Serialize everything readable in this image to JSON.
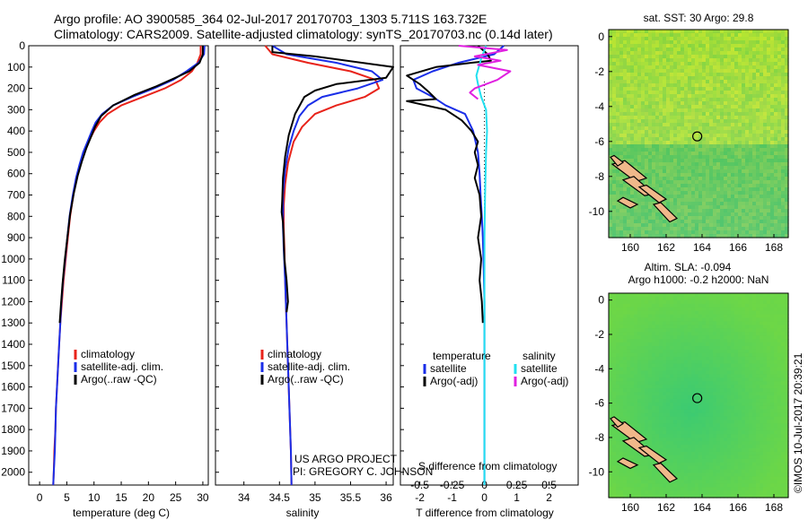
{
  "header": {
    "line1": "Argo profile: AO 3900585_364 02-Jul-2017 20170703_1303 5.711S 163.732E",
    "line2": "Climatology: CARS2009. Satellite-adjusted climatology: synTS_20170703.nc (0.14d later)"
  },
  "credits": {
    "project": "US ARGO PROJECT",
    "pi": "PI: GREGORY C. JOHNSON",
    "stamp": "©IMOS 10-Jul-2017 20:39:21"
  },
  "colors": {
    "climatology": "#e8231a",
    "satellite": "#1a2ee8",
    "argo": "#000000",
    "sat_salinity": "#22e0f0",
    "argo_salinity": "#e020e0",
    "land": "#f0b88a"
  },
  "chart_data": [
    {
      "type": "line",
      "name": "temperature",
      "xlabel": "temperature (deg C)",
      "xlim": [
        -2,
        31
      ],
      "ylim": [
        2060,
        0
      ],
      "xticks": [
        "0",
        "5",
        "10",
        "15",
        "20",
        "25",
        "30"
      ],
      "yticks": [
        "0",
        "100",
        "200",
        "300",
        "400",
        "500",
        "600",
        "700",
        "800",
        "900",
        "1000",
        "1100",
        "1200",
        "1300",
        "1400",
        "1500",
        "1600",
        "1700",
        "1800",
        "1900",
        "2000"
      ],
      "legend": [
        "climatology",
        "satellite-adj. clim.",
        "Argo(..raw -QC)"
      ],
      "series": [
        {
          "name": "climatology",
          "color_key": "climatology",
          "points": [
            [
              29.6,
              0
            ],
            [
              29.6,
              40
            ],
            [
              29.0,
              80
            ],
            [
              28.0,
              120
            ],
            [
              26.0,
              160
            ],
            [
              23.0,
              200
            ],
            [
              19.0,
              240
            ],
            [
              15.0,
              280
            ],
            [
              12.5,
              320
            ],
            [
              11.0,
              360
            ],
            [
              10.0,
              400
            ],
            [
              9.0,
              450
            ],
            [
              8.2,
              500
            ],
            [
              7.4,
              560
            ],
            [
              6.8,
              620
            ],
            [
              6.2,
              700
            ],
            [
              5.6,
              800
            ],
            [
              5.2,
              900
            ],
            [
              4.8,
              1000
            ],
            [
              4.4,
              1100
            ],
            [
              4.1,
              1200
            ],
            [
              3.8,
              1300
            ],
            [
              3.6,
              1400
            ],
            [
              3.4,
              1500
            ],
            [
              3.2,
              1600
            ],
            [
              3.0,
              1700
            ],
            [
              2.9,
              1800
            ],
            [
              2.7,
              1900
            ],
            [
              2.6,
              2000
            ],
            [
              2.5,
              2060
            ]
          ]
        },
        {
          "name": "satellite-adj. clim.",
          "color_key": "satellite",
          "points": [
            [
              30.3,
              0
            ],
            [
              30.2,
              40
            ],
            [
              29.2,
              80
            ],
            [
              27.0,
              120
            ],
            [
              24.5,
              160
            ],
            [
              21.0,
              200
            ],
            [
              17.0,
              240
            ],
            [
              13.5,
              280
            ],
            [
              11.5,
              320
            ],
            [
              10.3,
              360
            ],
            [
              9.6,
              400
            ],
            [
              8.8,
              450
            ],
            [
              8.0,
              500
            ],
            [
              7.3,
              560
            ],
            [
              6.7,
              620
            ],
            [
              6.1,
              700
            ],
            [
              5.5,
              800
            ],
            [
              5.1,
              900
            ],
            [
              4.7,
              1000
            ],
            [
              4.3,
              1100
            ],
            [
              4.0,
              1200
            ],
            [
              3.8,
              1300
            ],
            [
              3.6,
              1400
            ],
            [
              3.4,
              1500
            ],
            [
              3.2,
              1600
            ],
            [
              3.0,
              1700
            ],
            [
              2.9,
              1800
            ],
            [
              2.8,
              1900
            ],
            [
              2.6,
              2000
            ],
            [
              2.5,
              2060
            ]
          ]
        },
        {
          "name": "Argo(..raw -QC)",
          "color_key": "argo",
          "points": [
            [
              30.0,
              0
            ],
            [
              30.0,
              40
            ],
            [
              29.4,
              80
            ],
            [
              27.5,
              120
            ],
            [
              25.0,
              150
            ],
            [
              21.5,
              190
            ],
            [
              17.5,
              230
            ],
            [
              13.5,
              280
            ],
            [
              11.3,
              330
            ],
            [
              10.2,
              380
            ],
            [
              9.4,
              430
            ],
            [
              8.6,
              480
            ],
            [
              7.8,
              540
            ],
            [
              7.0,
              610
            ],
            [
              6.3,
              690
            ],
            [
              5.6,
              790
            ],
            [
              5.1,
              900
            ],
            [
              4.6,
              1010
            ],
            [
              4.2,
              1120
            ],
            [
              3.9,
              1220
            ],
            [
              3.7,
              1300
            ]
          ]
        }
      ]
    },
    {
      "type": "line",
      "name": "salinity",
      "xlabel": "salinity",
      "xlim": [
        33.6,
        36.1
      ],
      "ylim": [
        2060,
        0
      ],
      "xticks": [
        "34",
        "34.5",
        "35",
        "35.5",
        "36"
      ],
      "legend": [
        "climatology",
        "satellite-adj. clim.",
        "Argo(..raw -QC)"
      ],
      "series": [
        {
          "name": "climatology",
          "color_key": "climatology",
          "points": [
            [
              34.3,
              0
            ],
            [
              34.4,
              40
            ],
            [
              34.9,
              80
            ],
            [
              35.5,
              120
            ],
            [
              35.85,
              160
            ],
            [
              35.9,
              200
            ],
            [
              35.7,
              240
            ],
            [
              35.3,
              280
            ],
            [
              35.0,
              320
            ],
            [
              34.82,
              380
            ],
            [
              34.7,
              450
            ],
            [
              34.62,
              550
            ],
            [
              34.58,
              650
            ],
            [
              34.56,
              750
            ],
            [
              34.56,
              850
            ],
            [
              34.57,
              950
            ],
            [
              34.58,
              1100
            ],
            [
              34.6,
              1300
            ],
            [
              34.62,
              1500
            ],
            [
              34.64,
              1700
            ],
            [
              34.66,
              1900
            ],
            [
              34.67,
              2060
            ]
          ]
        },
        {
          "name": "satellite-adj. clim.",
          "color_key": "satellite",
          "points": [
            [
              34.4,
              0
            ],
            [
              34.6,
              40
            ],
            [
              35.3,
              80
            ],
            [
              35.8,
              120
            ],
            [
              35.95,
              160
            ],
            [
              35.6,
              200
            ],
            [
              35.1,
              240
            ],
            [
              34.9,
              280
            ],
            [
              34.78,
              330
            ],
            [
              34.7,
              400
            ],
            [
              34.63,
              480
            ],
            [
              34.58,
              580
            ],
            [
              34.55,
              700
            ],
            [
              34.55,
              850
            ],
            [
              34.56,
              950
            ],
            [
              34.58,
              1100
            ],
            [
              34.6,
              1300
            ],
            [
              34.62,
              1500
            ],
            [
              34.64,
              1700
            ],
            [
              34.66,
              1900
            ],
            [
              34.67,
              2060
            ]
          ]
        },
        {
          "name": "Argo(..raw -QC)",
          "color_key": "argo",
          "points": [
            [
              34.4,
              0
            ],
            [
              34.4,
              30
            ],
            [
              35.0,
              50
            ],
            [
              36.1,
              100
            ],
            [
              36.0,
              150
            ],
            [
              35.3,
              180
            ],
            [
              35.0,
              210
            ],
            [
              34.85,
              240
            ],
            [
              34.72,
              320
            ],
            [
              34.63,
              420
            ],
            [
              34.58,
              520
            ],
            [
              34.55,
              620
            ],
            [
              34.54,
              720
            ],
            [
              34.53,
              780
            ],
            [
              34.55,
              830
            ],
            [
              34.56,
              900
            ],
            [
              34.57,
              1000
            ],
            [
              34.6,
              1100
            ],
            [
              34.62,
              1200
            ],
            [
              34.6,
              1250
            ]
          ]
        }
      ]
    },
    {
      "type": "line",
      "name": "difference",
      "xlabel": "T difference from climatology",
      "xlabel_top": "S difference from climatology",
      "xlim": [
        -2.6,
        2.9
      ],
      "ylim": [
        2060,
        0
      ],
      "xticks": [
        "-2",
        "-1",
        "0",
        "1",
        "2"
      ],
      "xticks_S": [
        "-0.5",
        "-0.25",
        "0",
        "0.25",
        "0.5"
      ],
      "legend_title_T": "temperature",
      "legend_title_S": "salinity",
      "legend_T": [
        "satellite",
        "Argo(-adj)"
      ],
      "legend_S": [
        "satellite",
        "Argo(-adj)"
      ],
      "series": [
        {
          "name": "T satellite",
          "color_key": "satellite",
          "points": [
            [
              0.6,
              0
            ],
            [
              0.3,
              40
            ],
            [
              -0.8,
              80
            ],
            [
              -1.6,
              120
            ],
            [
              -2.2,
              160
            ],
            [
              -2.1,
              200
            ],
            [
              -1.6,
              240
            ],
            [
              -1.2,
              280
            ],
            [
              -0.6,
              320
            ],
            [
              -0.35,
              400
            ],
            [
              -0.2,
              500
            ],
            [
              -0.15,
              600
            ],
            [
              -0.12,
              700
            ],
            [
              -0.08,
              800
            ],
            [
              -0.05,
              900
            ],
            [
              -0.03,
              1000
            ],
            [
              0,
              1200
            ],
            [
              0,
              2060
            ]
          ]
        },
        {
          "name": "T Argo(-adj)",
          "color_key": "argo",
          "points": [
            [
              -0.2,
              0
            ],
            [
              0.1,
              40
            ],
            [
              0.2,
              70
            ],
            [
              -0.4,
              80
            ],
            [
              -1.5,
              100
            ],
            [
              -2.4,
              140
            ],
            [
              -2.0,
              180
            ],
            [
              -1.7,
              220
            ],
            [
              -1.5,
              250
            ],
            [
              -2.4,
              260
            ],
            [
              -1.2,
              300
            ],
            [
              -0.7,
              350
            ],
            [
              -0.4,
              400
            ],
            [
              -0.2,
              450
            ],
            [
              -0.3,
              500
            ],
            [
              -0.2,
              560
            ],
            [
              -0.3,
              620
            ],
            [
              -0.15,
              700
            ],
            [
              -0.1,
              800
            ],
            [
              -0.2,
              900
            ],
            [
              -0.1,
              1000
            ],
            [
              -0.15,
              1100
            ],
            [
              -0.08,
              1200
            ],
            [
              -0.05,
              1300
            ]
          ]
        },
        {
          "name": "S satellite",
          "color_key": "sat_salinity",
          "points": [
            [
              0.05,
              0
            ],
            [
              -0.1,
              60
            ],
            [
              -0.25,
              140
            ],
            [
              -0.2,
              180
            ],
            [
              -0.1,
              240
            ],
            [
              0.05,
              300
            ],
            [
              0.08,
              400
            ],
            [
              0.05,
              500
            ],
            [
              0.02,
              700
            ],
            [
              0,
              900
            ],
            [
              0,
              2060
            ]
          ]
        },
        {
          "name": "S Argo(-adj)",
          "color_key": "argo_salinity",
          "points": [
            [
              -0.8,
              0
            ],
            [
              0.7,
              20
            ],
            [
              -0.3,
              50
            ],
            [
              0.5,
              70
            ],
            [
              -0.2,
              90
            ],
            [
              0.8,
              120
            ],
            [
              0.4,
              160
            ],
            [
              -0.3,
              200
            ],
            [
              -0.45,
              220
            ],
            [
              -0.2,
              250
            ]
          ]
        }
      ]
    },
    {
      "type": "heatmap",
      "name": "sst-map",
      "title": "sat. SST: 30 Argo: 29.8",
      "xlim": [
        158.8,
        168.8
      ],
      "ylim": [
        -11.5,
        0.4
      ],
      "xticks": [
        "160",
        "162",
        "164",
        "166",
        "168"
      ],
      "yticks": [
        "0",
        "-2",
        "-4",
        "-6",
        "-8",
        "-10"
      ],
      "marker": [
        163.732,
        -5.711
      ]
    },
    {
      "type": "heatmap",
      "name": "sla-map",
      "title_line1": "Altim. SLA: -0.094",
      "title_line2": "Argo h1000: -0.2 h2000: NaN",
      "xlim": [
        158.8,
        168.8
      ],
      "ylim": [
        -11.5,
        0.4
      ],
      "xticks": [
        "160",
        "162",
        "164",
        "166",
        "168"
      ],
      "yticks": [
        "0",
        "-2",
        "-4",
        "-6",
        "-8",
        "-10"
      ],
      "marker": [
        163.732,
        -5.711
      ]
    }
  ]
}
